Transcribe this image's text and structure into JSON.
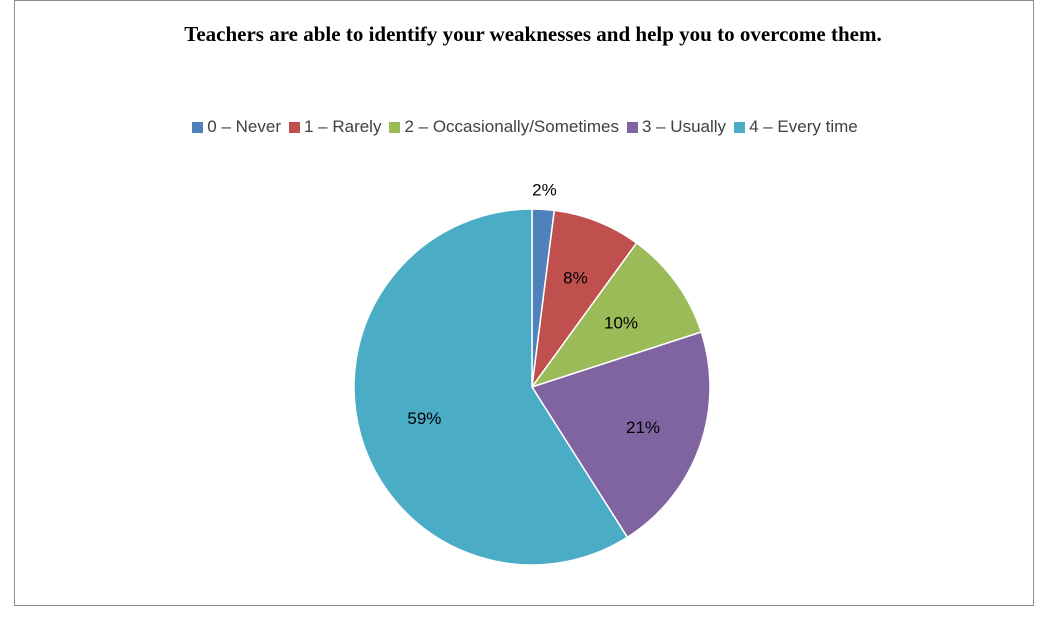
{
  "chart_data": {
    "type": "pie",
    "title": "Teachers are able to identify your weaknesses and help you to overcome them.",
    "categories": [
      "0 – Never",
      "1 – Rarely",
      "2 – Occasionally/Sometimes",
      "3 – Usually",
      "4 – Every time"
    ],
    "values": [
      2,
      8,
      10,
      21,
      59
    ],
    "data_labels": [
      "2%",
      "8%",
      "10%",
      "21%",
      "59%"
    ],
    "colors": [
      "#4F81BD",
      "#C0504D",
      "#9BBB59",
      "#8064A2",
      "#4BACC6"
    ],
    "legend_position": "top",
    "start_angle": "12 o'clock",
    "direction": "clockwise"
  }
}
